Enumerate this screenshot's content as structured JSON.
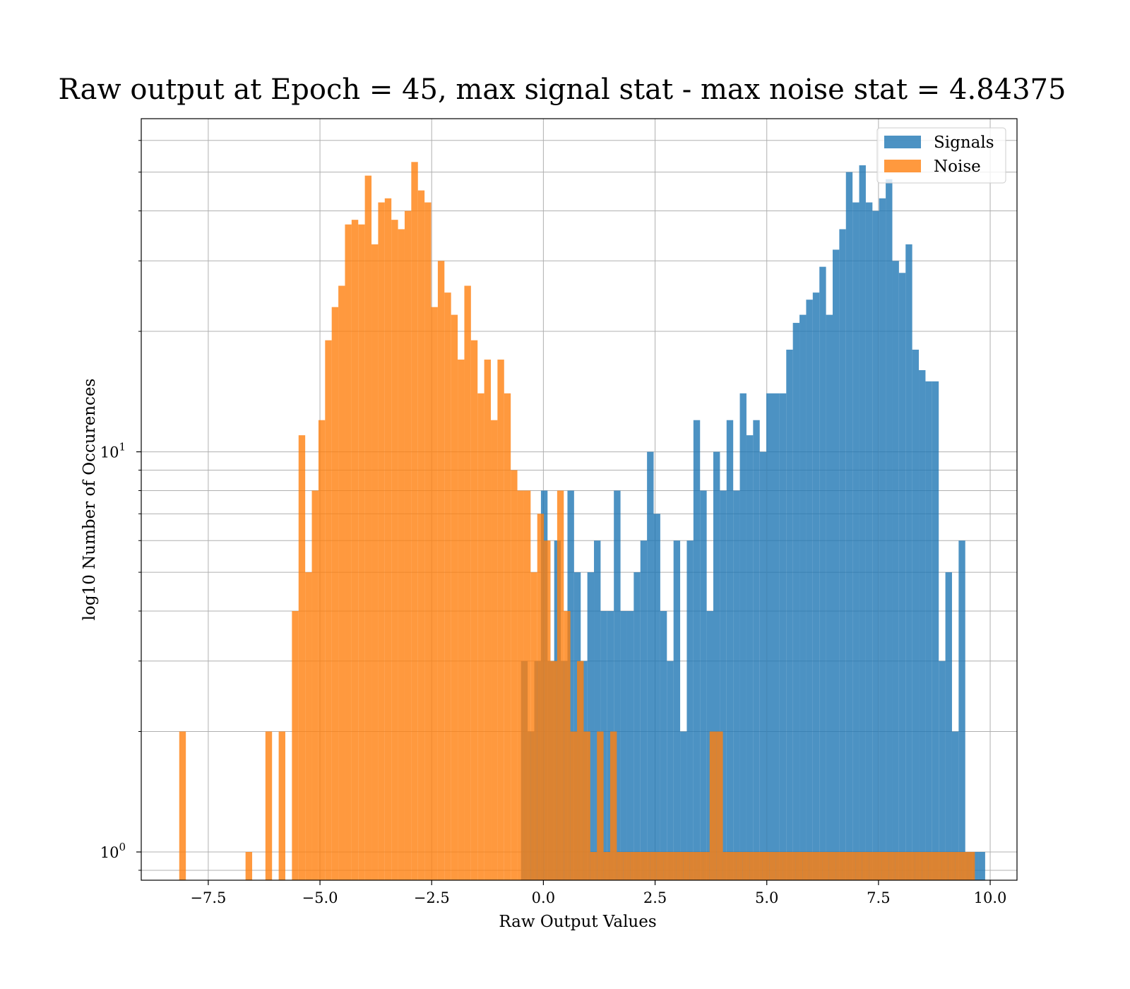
{
  "chart_data": {
    "type": "histogram",
    "title": "Raw output at Epoch = 45, max signal stat - max noise stat = 4.84375",
    "xlabel": "Raw Output Values",
    "ylabel": "log10 Number of Occurences",
    "xlim": [
      -9.0,
      10.6
    ],
    "ylim": [
      0.85,
      68
    ],
    "yscale": "log",
    "grid": true,
    "legend_position": "top-right",
    "x_ticks": [
      {
        "value": -7.5,
        "label": "−7.5"
      },
      {
        "value": -5.0,
        "label": "−5.0"
      },
      {
        "value": -2.5,
        "label": "−2.5"
      },
      {
        "value": 0.0,
        "label": "0.0"
      },
      {
        "value": 2.5,
        "label": "2.5"
      },
      {
        "value": 5.0,
        "label": "5.0"
      },
      {
        "value": 7.5,
        "label": "7.5"
      },
      {
        "value": 10.0,
        "label": "10.0"
      }
    ],
    "y_major_ticks": [
      {
        "value": 1,
        "base": "10",
        "exp": "0"
      },
      {
        "value": 10,
        "base": "10",
        "exp": "1"
      }
    ],
    "y_minor_ticks": [
      0.9,
      2,
      3,
      4,
      5,
      6,
      7,
      8,
      9,
      20,
      30,
      40,
      50,
      60
    ],
    "series": [
      {
        "name": "Signals",
        "color": "#1f77b4",
        "opacity": 0.8,
        "start": -0.5,
        "bin_width": 0.14839,
        "counts": [
          3,
          2,
          3,
          8,
          3,
          6,
          3,
          8,
          5,
          3,
          5,
          6,
          4,
          4,
          8,
          4,
          4,
          5,
          6,
          10,
          7,
          4,
          3,
          6,
          2,
          6,
          12,
          8,
          4,
          10,
          8,
          12,
          8,
          14,
          11,
          12,
          10,
          14,
          14,
          14,
          18,
          21,
          22,
          24,
          25,
          29,
          22,
          32,
          36,
          50,
          42,
          52,
          42,
          40,
          43,
          48,
          30,
          28,
          33,
          18,
          16,
          15,
          15,
          3,
          5,
          2,
          6,
          1,
          1,
          1
        ]
      },
      {
        "name": "Noise",
        "color": "#ff7f0e",
        "opacity": 0.8,
        "start": -8.15,
        "bin_width": 0.14839,
        "counts": [
          2,
          0,
          0,
          0,
          0,
          0,
          0,
          0,
          0,
          0,
          1,
          0,
          0,
          2,
          0,
          2,
          0,
          4,
          11,
          5,
          8,
          12,
          19,
          23,
          26,
          37,
          38,
          37,
          49,
          33,
          42,
          43,
          38,
          36,
          40,
          53,
          45,
          42,
          23,
          30,
          25,
          22,
          17,
          26,
          19,
          14,
          17,
          12,
          17,
          14,
          9,
          8,
          8,
          5,
          7,
          6,
          3,
          8,
          4,
          2,
          3,
          2,
          1,
          2,
          1,
          2,
          1,
          1,
          1,
          1,
          1,
          1,
          1,
          1,
          1,
          1,
          1,
          1,
          1,
          1,
          2,
          2,
          1,
          1,
          1,
          1,
          1,
          1,
          1,
          1,
          1,
          1,
          1,
          1,
          1,
          1,
          1,
          1,
          1,
          1,
          1,
          1,
          1,
          1,
          1,
          1,
          1,
          1,
          1,
          1,
          1,
          1,
          1,
          1,
          1,
          1,
          1,
          1,
          1,
          1
        ]
      }
    ]
  }
}
